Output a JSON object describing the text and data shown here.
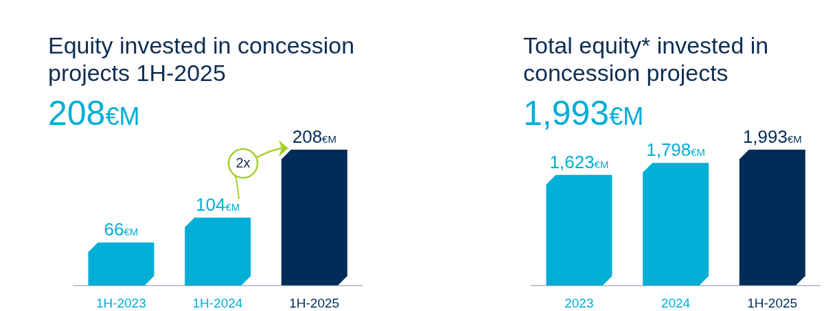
{
  "chart_data": [
    {
      "type": "bar",
      "title": "Equity invested in concession projects 1H-2025",
      "subtitle": "208€M",
      "categories": [
        "1H-2023",
        "1H-2024",
        "1H-2025"
      ],
      "values": [
        66,
        104,
        208
      ],
      "colors": [
        "#00aed6",
        "#00aed6",
        "#002c57"
      ],
      "value_labels": [
        "66€M",
        "104€M",
        "208€M"
      ],
      "annotations": [
        "2x"
      ]
    },
    {
      "type": "bar",
      "title": "Total equity* invested in concession projects",
      "subtitle": "1,993€M",
      "categories": [
        "2023",
        "2024",
        "1H-2025"
      ],
      "values": [
        1623,
        1798,
        1993
      ],
      "colors": [
        "#00aed6",
        "#00aed6",
        "#002c57"
      ],
      "value_labels": [
        "1,623€M",
        "1,798€M",
        "1,993€M"
      ]
    }
  ]
}
